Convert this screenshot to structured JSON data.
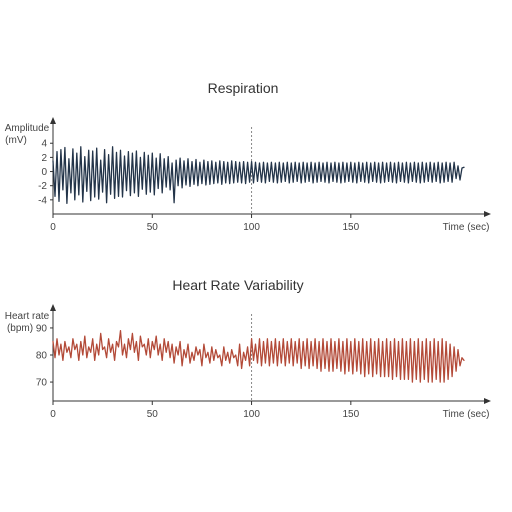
{
  "colors": {
    "background": "#ffffff",
    "axis": "#333333",
    "text": "#333333",
    "marker": "#888888"
  },
  "chart_data": [
    {
      "type": "line",
      "title": "Respiration",
      "ylabel": [
        "Amplitude",
        "(mV)"
      ],
      "xlabel": "Time (sec)",
      "xlim": [
        0,
        207
      ],
      "ylim": [
        -6,
        7
      ],
      "x_ticks": [
        0,
        50,
        100,
        150
      ],
      "y_ticks": [
        4,
        2,
        0,
        -2,
        -4
      ],
      "grid": false,
      "marker_x": 100,
      "series": [
        {
          "color": "#233449",
          "x_start": 0,
          "x_end": 207,
          "dx": 1,
          "values": [
            1.5,
            -3.5,
            2.8,
            -4.2,
            3.1,
            -2.6,
            3.4,
            -4.5,
            1.8,
            -3.0,
            3.2,
            -4.0,
            2.6,
            -3.3,
            3.5,
            -4.3,
            2.1,
            -2.8,
            3.0,
            -4.1,
            2.9,
            -3.6,
            3.3,
            -3.9,
            1.6,
            -2.9,
            3.1,
            -4.4,
            2.4,
            -3.2,
            3.5,
            -3.8,
            2.7,
            -3.5,
            3.0,
            -3.6,
            2.2,
            -2.7,
            2.8,
            -3.4,
            2.6,
            -3.0,
            2.9,
            -3.5,
            2.0,
            -2.5,
            2.7,
            -3.2,
            2.3,
            -2.9,
            2.6,
            -3.3,
            1.9,
            -2.4,
            2.5,
            -3.0,
            1.8,
            -2.2,
            2.1,
            -2.6,
            1.2,
            -4.4,
            1.6,
            -2.0,
            1.9,
            -2.3,
            1.5,
            -1.9,
            1.8,
            -2.1,
            1.4,
            -1.8,
            1.7,
            -2.0,
            1.3,
            -1.7,
            1.6,
            -1.9,
            1.4,
            -1.8,
            1.5,
            -1.7,
            1.3,
            -1.6,
            1.5,
            -1.8,
            1.4,
            -1.6,
            1.3,
            -1.7,
            1.5,
            -1.6,
            1.4,
            -1.5,
            1.3,
            -1.6,
            1.4,
            -1.7,
            1.3,
            -1.5,
            1.4,
            -1.6,
            1.3,
            -1.4,
            1.2,
            -1.5,
            1.3,
            -1.6,
            1.2,
            -1.4,
            1.3,
            -1.5,
            1.2,
            -1.6,
            1.3,
            -1.5,
            1.2,
            -1.4,
            1.3,
            -1.6,
            1.2,
            -1.5,
            1.3,
            -1.4,
            1.2,
            -1.6,
            1.3,
            -1.5,
            1.2,
            -1.4,
            1.3,
            -1.6,
            1.2,
            -1.5,
            1.3,
            -1.4,
            1.2,
            -1.5,
            1.3,
            -1.6,
            1.2,
            -1.4,
            1.3,
            -1.5,
            1.2,
            -1.6,
            1.3,
            -1.5,
            1.2,
            -1.4,
            1.3,
            -1.5,
            1.2,
            -1.6,
            1.3,
            -1.4,
            1.2,
            -1.5,
            1.3,
            -1.6,
            1.2,
            -1.4,
            1.3,
            -1.5,
            1.2,
            -1.6,
            1.3,
            -1.5,
            1.2,
            -1.4,
            1.3,
            -1.5,
            1.2,
            -1.6,
            1.3,
            -1.4,
            1.2,
            -1.5,
            1.3,
            -1.6,
            1.2,
            -1.4,
            1.3,
            -1.5,
            1.2,
            -1.6,
            1.3,
            -1.5,
            1.2,
            -1.4,
            1.3,
            -1.5,
            1.2,
            -1.4,
            1.3,
            -1.6,
            1.2,
            -1.5,
            1.3,
            -1.4,
            1.2,
            -1.5,
            1.3,
            -1.0,
            0.8,
            -1.2,
            0.5,
            0.6
          ]
        }
      ]
    },
    {
      "type": "line",
      "title": "Heart Rate Variability",
      "ylabel": [
        "Heart rate",
        "(bpm)"
      ],
      "xlabel": "Time (sec)",
      "xlim": [
        0,
        207
      ],
      "ylim": [
        63,
        97
      ],
      "x_ticks": [
        0,
        50,
        100,
        150
      ],
      "y_ticks": [
        90,
        80,
        70
      ],
      "grid": false,
      "marker_x": 100,
      "series": [
        {
          "color": "#b34a38",
          "x_start": 0,
          "x_end": 207,
          "dx": 1,
          "values": [
            85,
            79,
            86,
            80,
            84,
            78,
            85,
            81,
            83,
            79,
            86,
            82,
            84,
            78,
            85,
            80,
            87,
            79,
            83,
            81,
            86,
            78,
            84,
            80,
            88,
            82,
            83,
            79,
            86,
            81,
            84,
            78,
            85,
            83,
            89,
            80,
            84,
            79,
            86,
            82,
            88,
            81,
            85,
            78,
            87,
            83,
            84,
            80,
            86,
            79,
            85,
            82,
            87,
            80,
            84,
            78,
            86,
            81,
            85,
            79,
            84,
            77,
            83,
            80,
            85,
            76,
            82,
            79,
            84,
            77,
            81,
            78,
            83,
            80,
            82,
            76,
            84,
            79,
            81,
            77,
            83,
            78,
            82,
            79,
            80,
            76,
            83,
            78,
            81,
            77,
            82,
            79,
            80,
            76,
            84,
            75,
            81,
            78,
            83,
            76,
            86,
            78,
            84,
            77,
            86,
            76,
            85,
            77,
            86,
            76,
            85,
            77,
            86,
            76,
            85,
            77,
            86,
            76,
            85,
            77,
            86,
            76,
            85,
            77,
            86,
            75,
            85,
            76,
            86,
            75,
            85,
            76,
            86,
            75,
            85,
            74,
            86,
            75,
            85,
            74,
            86,
            74,
            85,
            75,
            86,
            74,
            85,
            73,
            86,
            74,
            85,
            73,
            86,
            74,
            85,
            73,
            86,
            72,
            85,
            73,
            86,
            72,
            85,
            73,
            86,
            72,
            85,
            72,
            86,
            72,
            85,
            71,
            86,
            72,
            85,
            71,
            86,
            71,
            85,
            71,
            86,
            70,
            85,
            71,
            86,
            70,
            85,
            71,
            86,
            70,
            85,
            70,
            86,
            71,
            85,
            70,
            86,
            70,
            85,
            71,
            84,
            72,
            83,
            74,
            82,
            76,
            79,
            78
          ]
        }
      ]
    }
  ]
}
